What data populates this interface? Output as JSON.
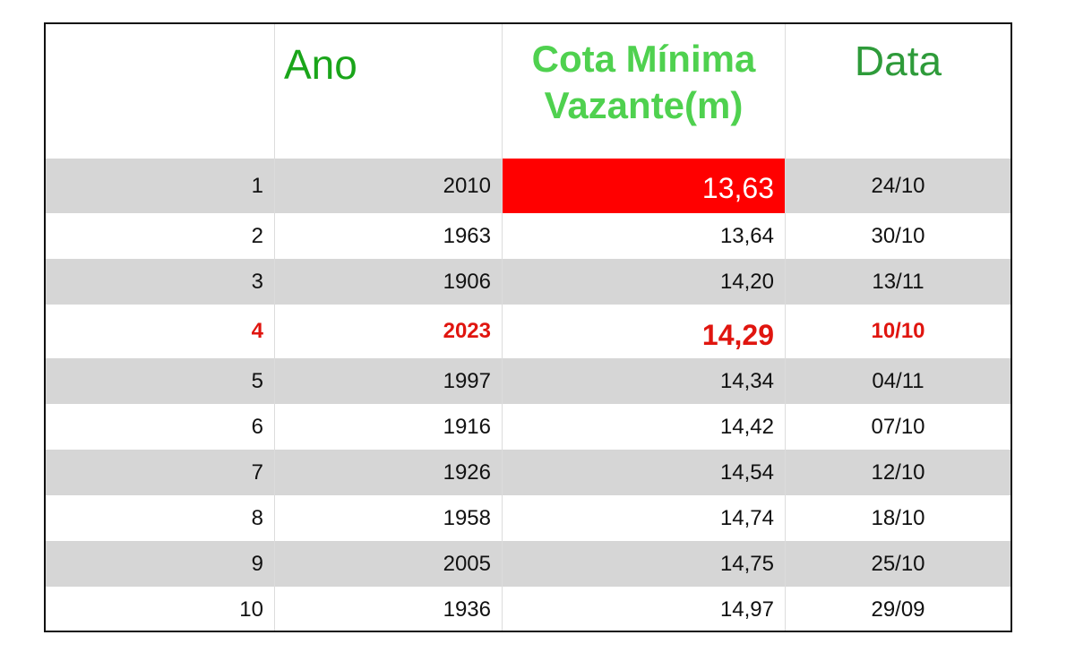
{
  "headers": {
    "rank": "",
    "ano": "Ano",
    "cota": "Cota Mínima Vazante(m)",
    "data": "Data"
  },
  "rows": [
    {
      "rank": "1",
      "ano": "2010",
      "cota": "13,63",
      "data": "24/10"
    },
    {
      "rank": "2",
      "ano": "1963",
      "cota": "13,64",
      "data": "30/10"
    },
    {
      "rank": "3",
      "ano": "1906",
      "cota": "14,20",
      "data": "13/11"
    },
    {
      "rank": "4",
      "ano": "2023",
      "cota": "14,29",
      "data": "10/10"
    },
    {
      "rank": "5",
      "ano": "1997",
      "cota": "14,34",
      "data": "04/11"
    },
    {
      "rank": "6",
      "ano": "1916",
      "cota": "14,42",
      "data": "07/10"
    },
    {
      "rank": "7",
      "ano": "1926",
      "cota": "14,54",
      "data": "12/10"
    },
    {
      "rank": "8",
      "ano": "1958",
      "cota": "14,74",
      "data": "18/10"
    },
    {
      "rank": "9",
      "ano": "2005",
      "cota": "14,75",
      "data": "25/10"
    },
    {
      "rank": "10",
      "ano": "1936",
      "cota": "14,97",
      "data": "29/09"
    }
  ],
  "colors": {
    "header_ano": "#1aa51a",
    "header_cota": "#4fd14f",
    "header_data": "#2e9b3a",
    "record_cell_bg": "#ff0000",
    "highlight_text": "#e0150f",
    "stripe": "#d6d6d6"
  }
}
